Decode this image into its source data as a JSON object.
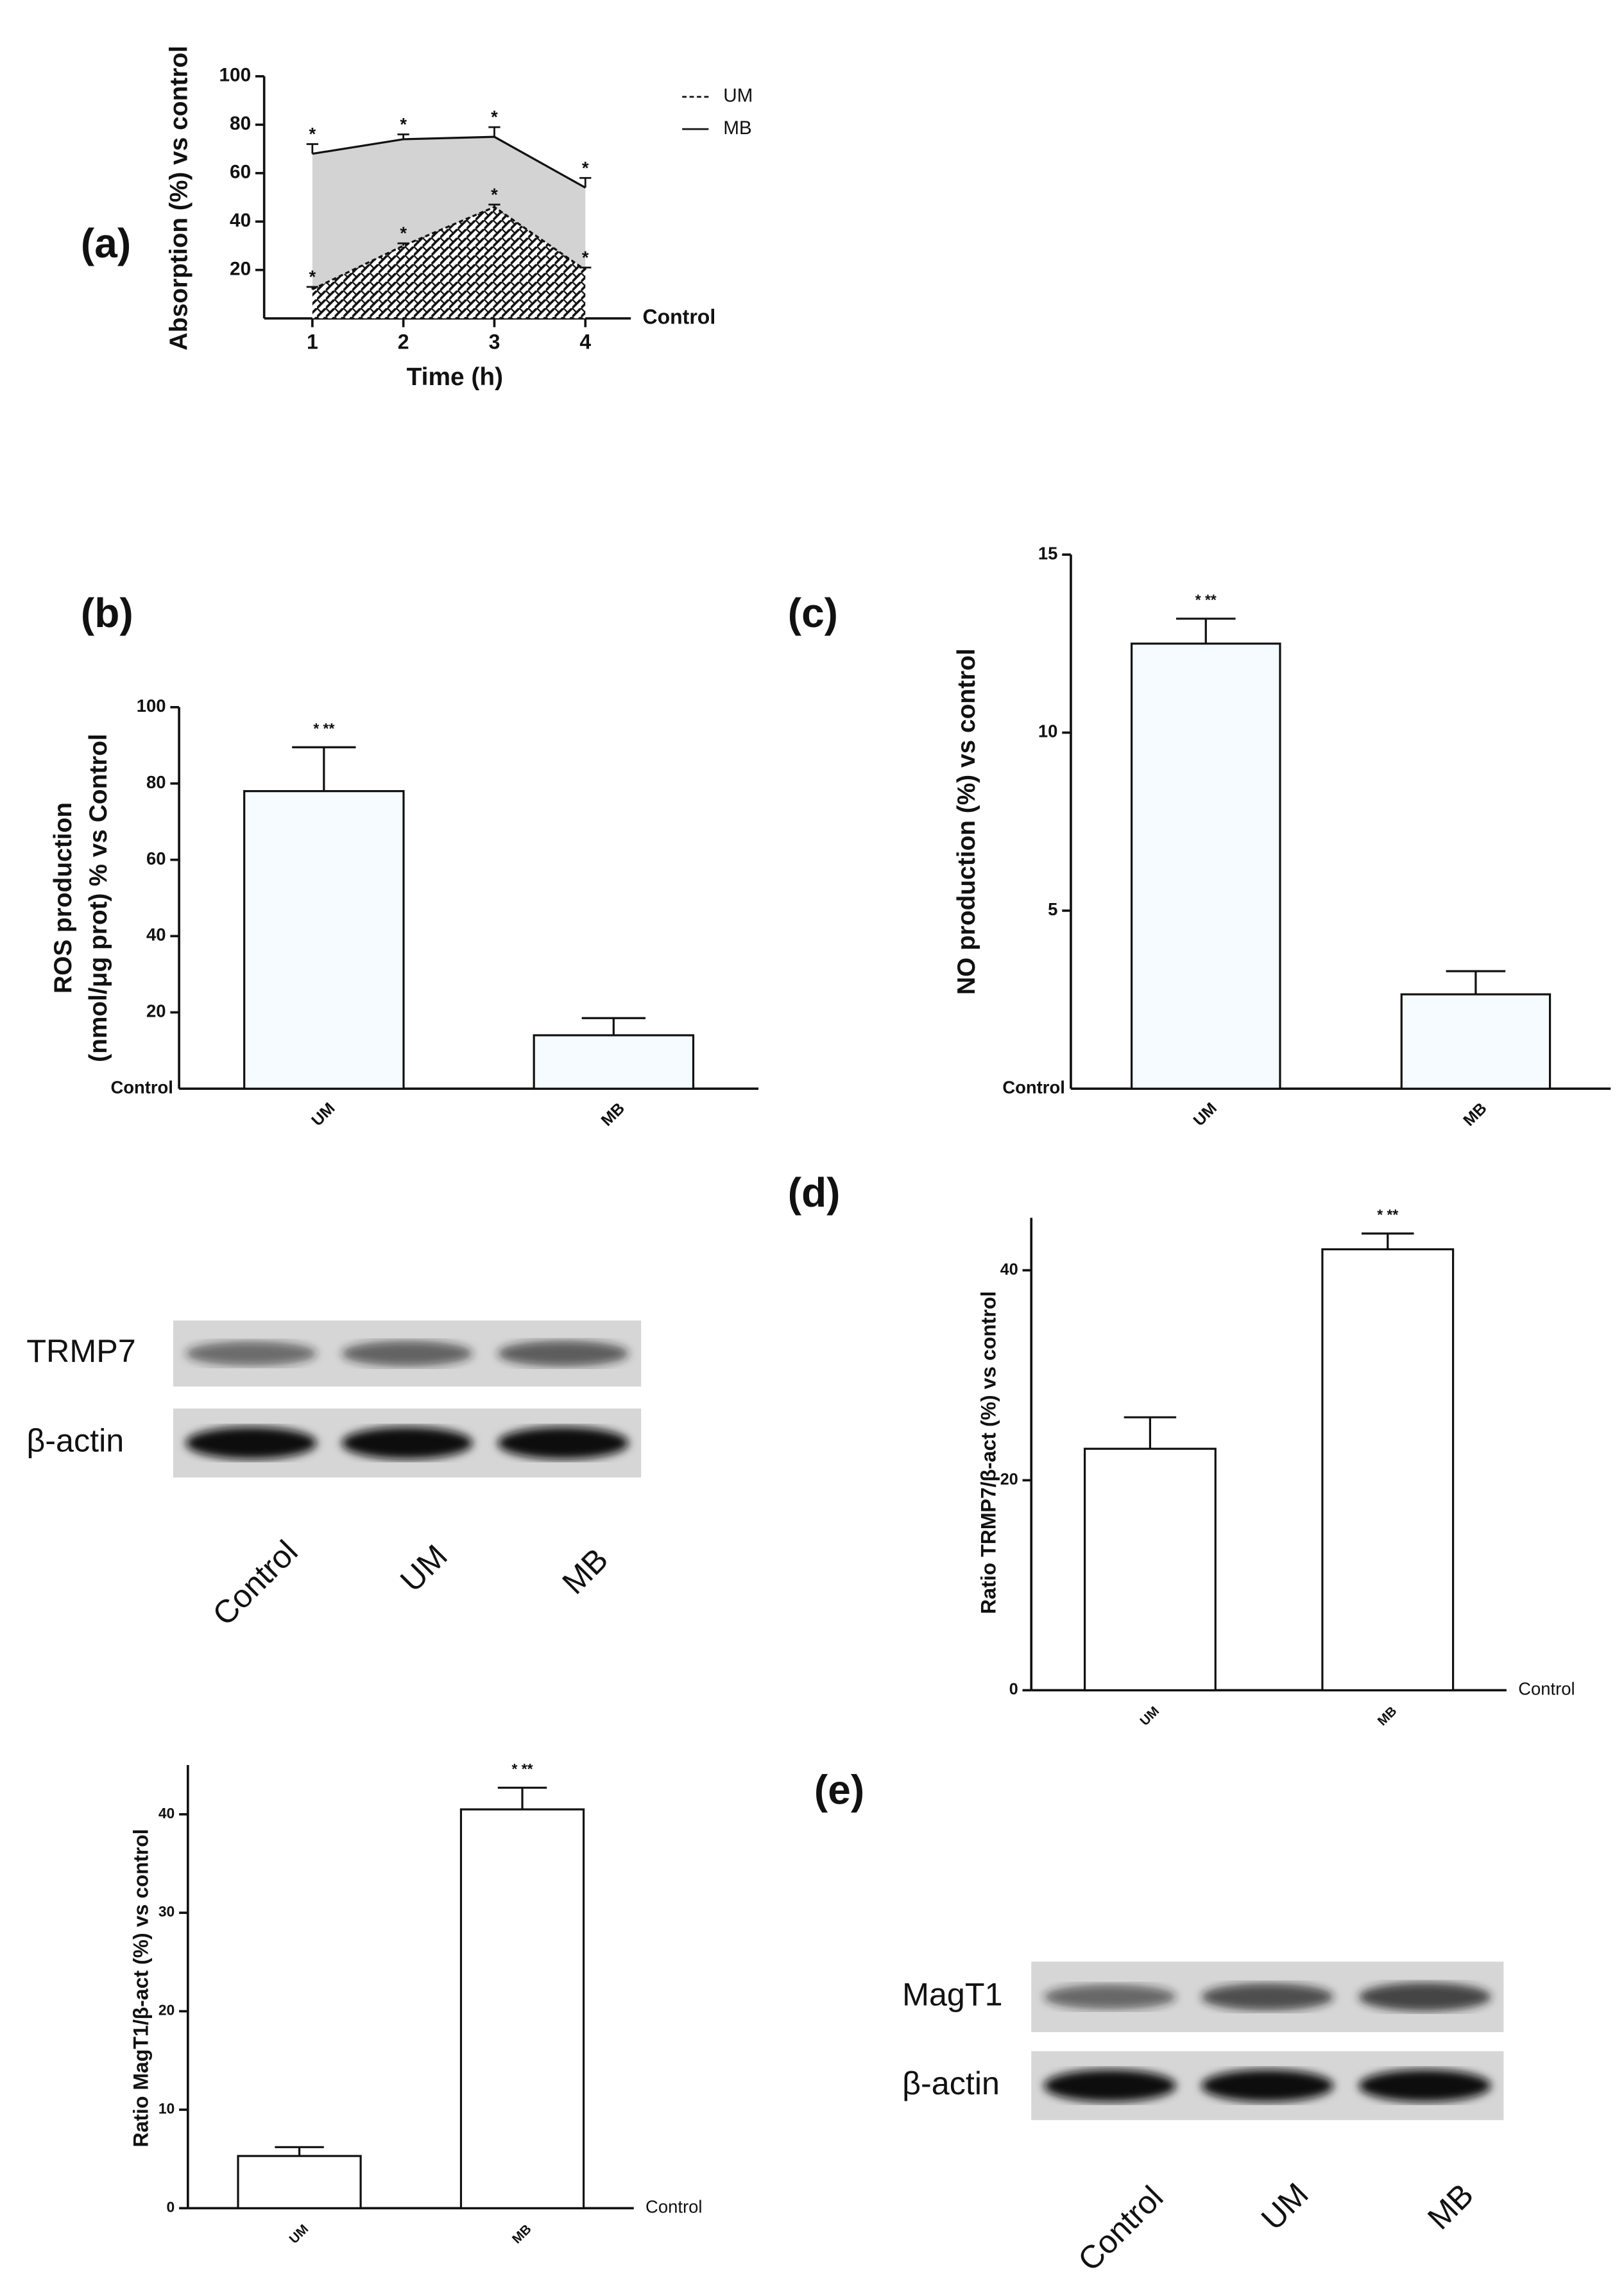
{
  "chart_data": [
    {
      "type": "line",
      "panel": "(a)",
      "xlabel": "Time (h)",
      "ylabel": "Absorption (%) vs control",
      "baseline_label": "Control",
      "baseline_label_position": "right",
      "x": [
        1,
        2,
        3,
        4
      ],
      "xlim": [
        0.47,
        4.5
      ],
      "xticks": [
        1,
        2,
        3,
        4
      ],
      "ylim": [
        0,
        100
      ],
      "yticks": [
        20,
        40,
        60,
        80,
        100
      ],
      "series": [
        {
          "name": "UM",
          "color": "#111111",
          "dash": true,
          "values": [
            12,
            30,
            46,
            20
          ],
          "errors": [
            1,
            1,
            1,
            1
          ],
          "significance": [
            "*",
            "*",
            "*",
            "*"
          ]
        },
        {
          "name": "MB",
          "color": "#111111",
          "dash": false,
          "values": [
            68,
            74,
            75,
            54
          ],
          "errors": [
            4,
            2,
            4,
            4
          ],
          "significance": [
            "*",
            "*",
            "*",
            "*"
          ]
        }
      ]
    },
    {
      "type": "bar",
      "panel": "(b)",
      "ylabel": [
        "ROS production",
        "(nmol/μg prot) % vs Control"
      ],
      "baseline_label": "Control",
      "baseline_label_position": "left",
      "categories": [
        "UM",
        "MB"
      ],
      "values": [
        78,
        14
      ],
      "errors": [
        11.5,
        4.5
      ],
      "significance": [
        "* **",
        null
      ],
      "color": "#f5fbff",
      "ylim": [
        0,
        100
      ],
      "yticks": [
        20,
        40,
        60,
        80,
        100
      ]
    },
    {
      "type": "bar",
      "panel": "(c)",
      "ylabel": "NO production (%)  vs control",
      "baseline_label": "Control",
      "baseline_label_position": "left",
      "categories": [
        "UM",
        "MB"
      ],
      "values": [
        12.5,
        2.65
      ],
      "errors": [
        0.7,
        0.65
      ],
      "significance": [
        "* **",
        null
      ],
      "color": "#f5fbff",
      "ylim": [
        0,
        15
      ],
      "yticks": [
        5,
        10,
        15
      ]
    },
    {
      "type": "bar",
      "panel": "(d)",
      "ylabel": "Ratio TRMP7/β-act (%) vs control",
      "baseline_label": "Control",
      "baseline_label_position": "right",
      "categories": [
        "UM",
        "MB"
      ],
      "values": [
        23,
        42
      ],
      "errors": [
        3,
        1.5
      ],
      "significance": [
        null,
        "* **"
      ],
      "color": "#ffffff",
      "ylim": [
        0,
        45
      ],
      "yticks": [
        0,
        20,
        40
      ]
    },
    {
      "type": "bar",
      "ylabel": "Ratio MagT1/β-act (%) vs control",
      "baseline_label": "Control",
      "baseline_label_position": "right",
      "categories": [
        "UM",
        "MB"
      ],
      "values": [
        5.3,
        40.5
      ],
      "errors": [
        0.9,
        2.2
      ],
      "significance": [
        null,
        "* **"
      ],
      "color": "#ffffff",
      "ylim": [
        0,
        45
      ],
      "yticks": [
        0,
        10,
        20,
        30,
        40
      ]
    }
  ],
  "blots": [
    {
      "rows": [
        "TRMP7",
        "β-actin"
      ],
      "lanes": [
        "Control",
        "UM",
        "MB"
      ]
    },
    {
      "panel": "(e)",
      "rows": [
        "MagT1",
        "β-actin"
      ],
      "lanes": [
        "Control",
        "UM",
        "MB"
      ]
    }
  ]
}
